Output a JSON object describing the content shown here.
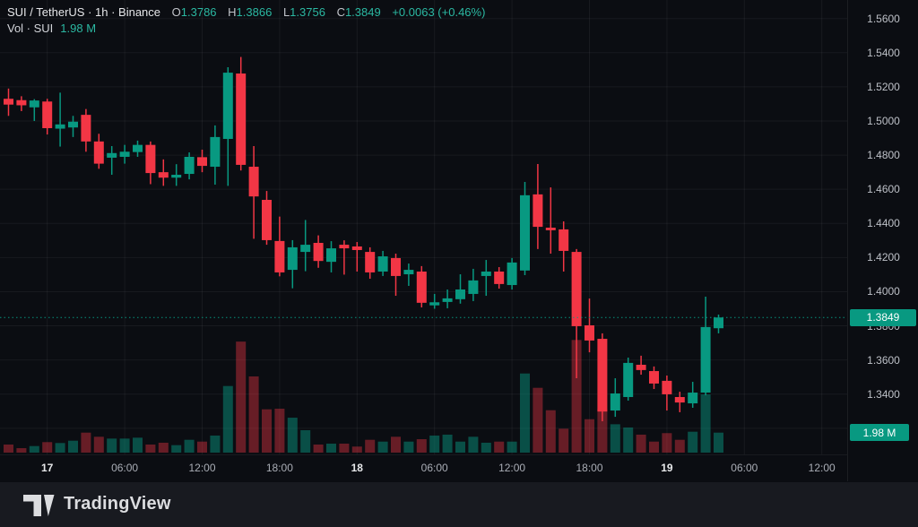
{
  "header": {
    "symbol": "SUI / TetherUS · 1h · Binance",
    "o_label": "O",
    "o_value": "1.3786",
    "h_label": "H",
    "h_value": "1.3866",
    "l_label": "L",
    "l_value": "1.3756",
    "c_label": "C",
    "c_value": "1.3849",
    "change": "+0.0063 (+0.46%)",
    "vol_label": "Vol · SUI",
    "vol_value": "1.98 M"
  },
  "badges": {
    "last_price": "1.3849",
    "volume": "1.98 M"
  },
  "footer": {
    "brand": "TradingView"
  },
  "colors": {
    "up": "#089981",
    "down": "#F23645",
    "vol_up": "rgba(8,153,129,0.48)",
    "vol_down": "rgba(242,54,69,0.40)",
    "grid": "rgba(255,255,255,0.055)",
    "accent_text": "#2bb8a2",
    "badge_bg": "#089981"
  },
  "chart_data": {
    "type": "candlestick",
    "title": "SUI / TetherUS · 1h · Binance",
    "volume_overlay": true,
    "price_axis": {
      "min": 1.32,
      "max": 1.56,
      "step": 0.02
    },
    "price_ticks": [
      {
        "v": 1.56,
        "label": "1.5600"
      },
      {
        "v": 1.54,
        "label": "1.5400"
      },
      {
        "v": 1.52,
        "label": "1.5200"
      },
      {
        "v": 1.5,
        "label": "1.5000"
      },
      {
        "v": 1.48,
        "label": "1.4800"
      },
      {
        "v": 1.46,
        "label": "1.4600"
      },
      {
        "v": 1.44,
        "label": "1.4400"
      },
      {
        "v": 1.42,
        "label": "1.4200"
      },
      {
        "v": 1.4,
        "label": "1.4000"
      },
      {
        "v": 1.38,
        "label": "1.3800"
      },
      {
        "v": 1.36,
        "label": "1.3600"
      },
      {
        "v": 1.34,
        "label": "1.3400"
      },
      {
        "v": 1.32,
        "label": "1.3200"
      }
    ],
    "time_ticks": [
      {
        "label": "17",
        "index": 3,
        "bold": true
      },
      {
        "label": "06:00",
        "index": 9,
        "bold": false
      },
      {
        "label": "12:00",
        "index": 15,
        "bold": false
      },
      {
        "label": "18:00",
        "index": 21,
        "bold": false
      },
      {
        "label": "18",
        "index": 27,
        "bold": true
      },
      {
        "label": "06:00",
        "index": 33,
        "bold": false
      },
      {
        "label": "12:00",
        "index": 39,
        "bold": false
      },
      {
        "label": "18:00",
        "index": 45,
        "bold": false
      },
      {
        "label": "19",
        "index": 51,
        "bold": true
      },
      {
        "label": "06:00",
        "index": 57,
        "bold": false
      },
      {
        "label": "12:00",
        "index": 63,
        "bold": false
      }
    ],
    "last_price": 1.3849,
    "last_volume_m": 1.98,
    "candle_format": [
      "open",
      "high",
      "low",
      "close",
      "volume_millions"
    ],
    "candles": [
      [
        1.513,
        1.519,
        1.503,
        1.5096,
        0.8
      ],
      [
        1.5122,
        1.5145,
        1.5058,
        1.5092,
        0.44
      ],
      [
        1.508,
        1.5128,
        1.5,
        1.512,
        0.65
      ],
      [
        1.5114,
        1.513,
        1.4921,
        1.4958,
        1.04
      ],
      [
        1.4955,
        1.5166,
        1.485,
        1.498,
        0.95
      ],
      [
        1.4962,
        1.503,
        1.4906,
        1.4996,
        1.18
      ],
      [
        1.5036,
        1.507,
        1.482,
        1.488,
        1.98
      ],
      [
        1.488,
        1.4925,
        1.472,
        1.475,
        1.57
      ],
      [
        1.4785,
        1.4853,
        1.4685,
        1.4812,
        1.39
      ],
      [
        1.479,
        1.486,
        1.475,
        1.482,
        1.39
      ],
      [
        1.4818,
        1.4885,
        1.479,
        1.486,
        1.48
      ],
      [
        1.486,
        1.488,
        1.463,
        1.4695,
        0.8
      ],
      [
        1.47,
        1.4775,
        1.462,
        1.4668,
        0.98
      ],
      [
        1.4668,
        1.4747,
        1.462,
        1.4685,
        0.74
      ],
      [
        1.469,
        1.4816,
        1.4658,
        1.479,
        1.27
      ],
      [
        1.4788,
        1.4832,
        1.47,
        1.4737,
        1.09
      ],
      [
        1.4732,
        1.4974,
        1.4627,
        1.4906,
        1.69
      ],
      [
        1.4895,
        1.5315,
        1.462,
        1.5283,
        6.6
      ],
      [
        1.5278,
        1.5375,
        1.471,
        1.4743,
        11.0
      ],
      [
        1.4732,
        1.4853,
        1.431,
        1.4558,
        7.55
      ],
      [
        1.4538,
        1.459,
        1.4275,
        1.4302,
        4.29
      ],
      [
        1.4297,
        1.444,
        1.409,
        1.4113,
        4.35
      ],
      [
        1.4128,
        1.4302,
        1.402,
        1.426,
        3.46
      ],
      [
        1.4233,
        1.442,
        1.412,
        1.4275,
        2.22
      ],
      [
        1.4286,
        1.433,
        1.414,
        1.418,
        0.8
      ],
      [
        1.4175,
        1.4296,
        1.4113,
        1.4254,
        0.89
      ],
      [
        1.4275,
        1.4301,
        1.41,
        1.4254,
        0.89
      ],
      [
        1.4265,
        1.4291,
        1.4118,
        1.4244,
        0.6
      ],
      [
        1.4233,
        1.426,
        1.4076,
        1.4113,
        1.27
      ],
      [
        1.4118,
        1.4239,
        1.4092,
        1.4207,
        1.09
      ],
      [
        1.4197,
        1.4223,
        1.3976,
        1.4092,
        1.57
      ],
      [
        1.4102,
        1.4165,
        1.4034,
        1.4128,
        1.09
      ],
      [
        1.4118,
        1.415,
        1.3908,
        1.3935,
        1.33
      ],
      [
        1.392,
        1.3987,
        1.39,
        1.3938,
        1.69
      ],
      [
        1.394,
        1.4013,
        1.3903,
        1.3961,
        1.78
      ],
      [
        1.3956,
        1.4102,
        1.393,
        1.4013,
        1.09
      ],
      [
        1.3987,
        1.4134,
        1.3945,
        1.4066,
        1.57
      ],
      [
        1.4092,
        1.4186,
        1.3976,
        1.4118,
        0.98
      ],
      [
        1.4118,
        1.4144,
        1.4018,
        1.4045,
        1.09
      ],
      [
        1.4039,
        1.4197,
        1.4013,
        1.4171,
        1.09
      ],
      [
        1.4124,
        1.4643,
        1.4097,
        1.4565,
        7.84
      ],
      [
        1.457,
        1.4748,
        1.425,
        1.438,
        6.42
      ],
      [
        1.4375,
        1.4611,
        1.4223,
        1.436,
        4.2
      ],
      [
        1.4365,
        1.4412,
        1.4118,
        1.4239,
        2.37
      ],
      [
        1.4233,
        1.425,
        1.3493,
        1.3798,
        11.16
      ],
      [
        1.3803,
        1.396,
        1.3645,
        1.3714,
        3.31
      ],
      [
        1.3724,
        1.3756,
        1.3241,
        1.3298,
        4.35
      ],
      [
        1.3304,
        1.3493,
        1.3267,
        1.3404,
        2.81
      ],
      [
        1.3383,
        1.3614,
        1.3362,
        1.3583,
        2.49
      ],
      [
        1.3572,
        1.3625,
        1.3514,
        1.3541,
        1.78
      ],
      [
        1.3535,
        1.3562,
        1.343,
        1.3462,
        1.09
      ],
      [
        1.3478,
        1.3509,
        1.3304,
        1.3399,
        1.93
      ],
      [
        1.3383,
        1.3414,
        1.3294,
        1.3351,
        1.27
      ],
      [
        1.3346,
        1.3472,
        1.332,
        1.3409,
        2.07
      ],
      [
        1.3409,
        1.3971,
        1.3393,
        1.3793,
        5.77
      ],
      [
        1.3786,
        1.3866,
        1.3756,
        1.3849,
        1.98
      ]
    ]
  }
}
